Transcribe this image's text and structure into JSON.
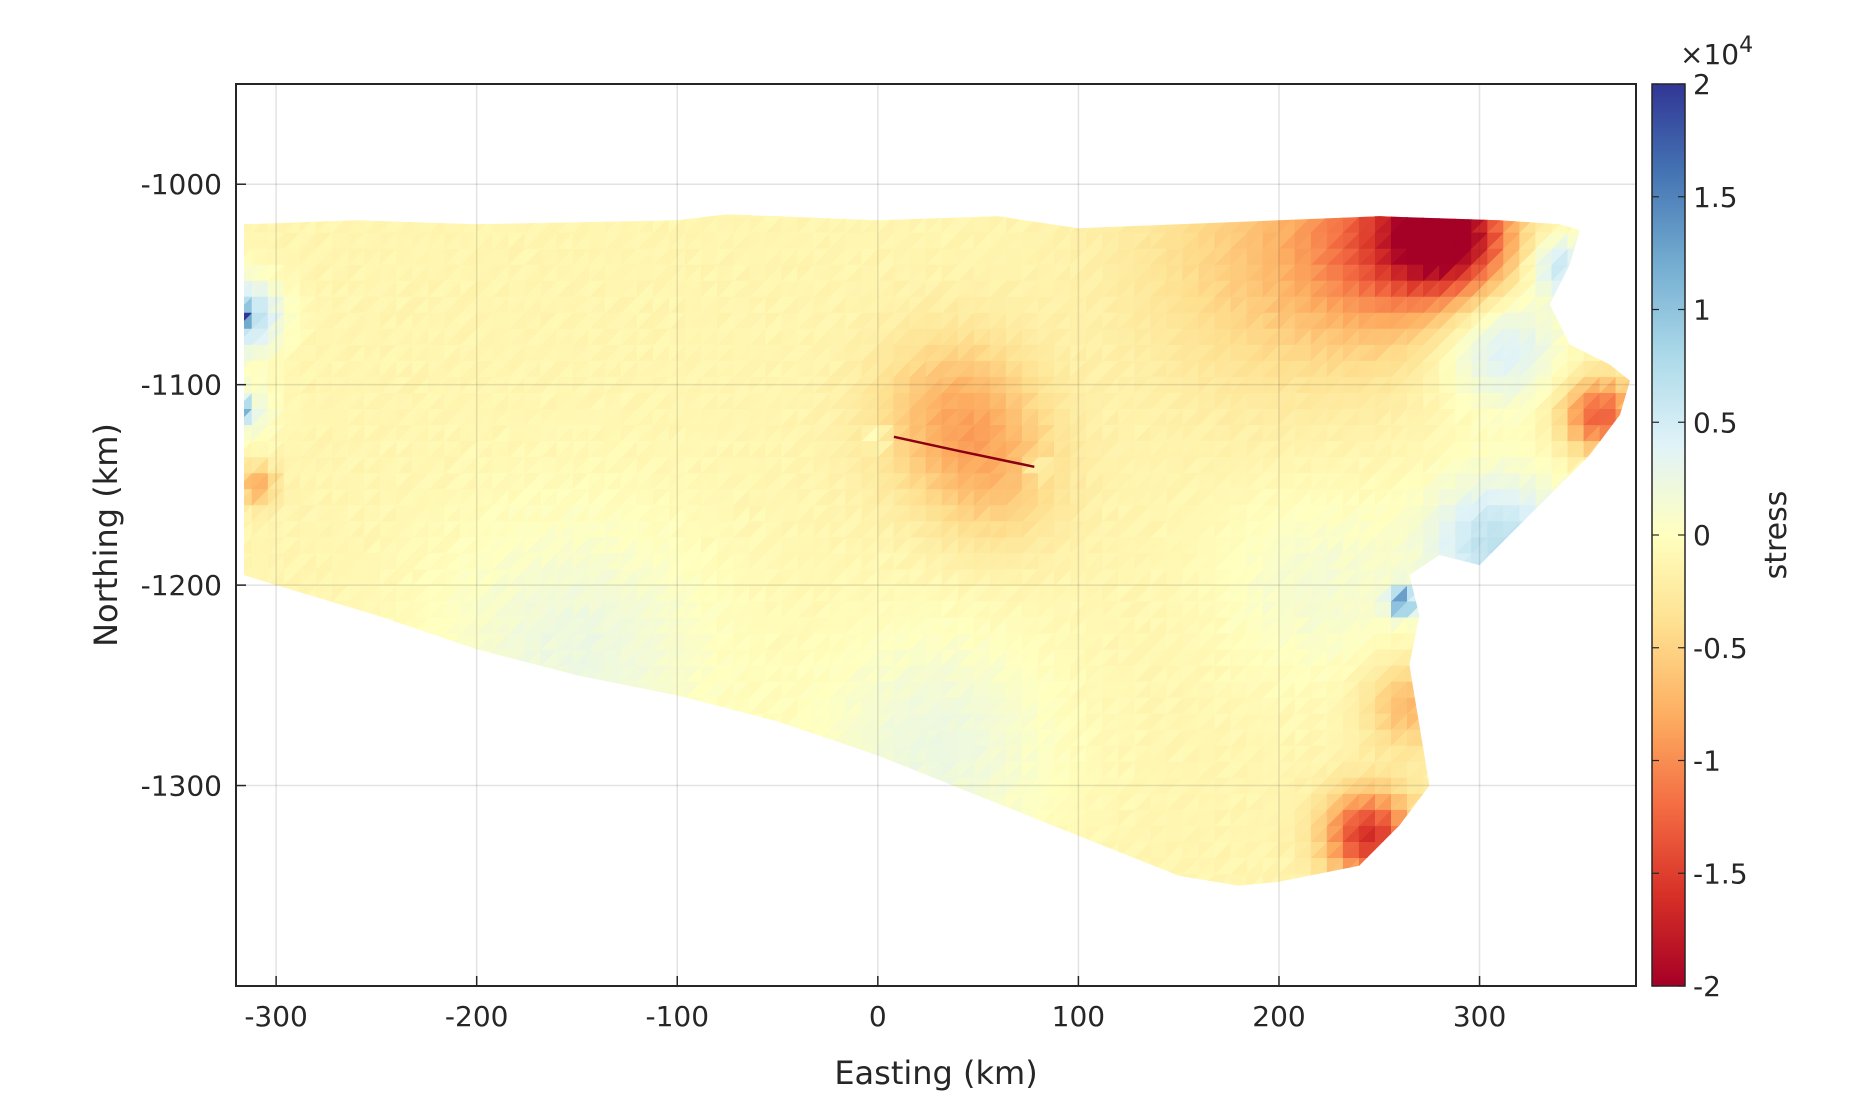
{
  "chart_data": {
    "type": "heatmap",
    "title": "",
    "xlabel": "Easting (km)",
    "ylabel": "Northing (km)",
    "xlim": [
      -320,
      378
    ],
    "ylim": [
      -1400,
      -950
    ],
    "x_ticks": [
      -300,
      -200,
      -100,
      0,
      100,
      200,
      300
    ],
    "x_tick_labels": [
      "-300",
      "-200",
      "-100",
      "0",
      "100",
      "200",
      "300"
    ],
    "y_ticks": [
      -1000,
      -1100,
      -1200,
      -1300
    ],
    "y_tick_labels": [
      "-1000",
      "-1100",
      "-1200",
      "-1300"
    ],
    "grid": true,
    "colorbar": {
      "label": "stress",
      "exponent_label": "×10",
      "exponent_power": "4",
      "range": [
        -2,
        2
      ],
      "ticks": [
        2,
        1.5,
        1,
        0.5,
        0,
        -0.5,
        -1,
        -1.5,
        -2
      ],
      "tick_labels": [
        "2",
        "1.5",
        "1",
        "0.5",
        "0",
        "-0.5",
        "-1",
        "-1.5",
        "-2"
      ],
      "colormap": "RdYlBu",
      "colormap_stops": [
        "#a50026",
        "#d73027",
        "#f46d43",
        "#fdae61",
        "#fee090",
        "#ffffbf",
        "#e0f3f8",
        "#abd9e9",
        "#74add1",
        "#4575b4",
        "#313695"
      ]
    },
    "domain_outline": [
      [
        -316,
        -1020
      ],
      [
        -260,
        -1018
      ],
      [
        -200,
        -1020
      ],
      [
        -150,
        -1019
      ],
      [
        -100,
        -1018
      ],
      [
        -75,
        -1015
      ],
      [
        0,
        -1018
      ],
      [
        60,
        -1016
      ],
      [
        100,
        -1022
      ],
      [
        150,
        -1020
      ],
      [
        200,
        -1018
      ],
      [
        250,
        -1016
      ],
      [
        280,
        -1017
      ],
      [
        310,
        -1018
      ],
      [
        340,
        -1020
      ],
      [
        350,
        -1023
      ],
      [
        345,
        -1040
      ],
      [
        335,
        -1060
      ],
      [
        345,
        -1080
      ],
      [
        365,
        -1090
      ],
      [
        375,
        -1098
      ],
      [
        370,
        -1115
      ],
      [
        355,
        -1135
      ],
      [
        335,
        -1155
      ],
      [
        315,
        -1175
      ],
      [
        300,
        -1190
      ],
      [
        280,
        -1185
      ],
      [
        265,
        -1195
      ],
      [
        270,
        -1215
      ],
      [
        265,
        -1240
      ],
      [
        270,
        -1270
      ],
      [
        275,
        -1300
      ],
      [
        260,
        -1320
      ],
      [
        240,
        -1340
      ],
      [
        200,
        -1348
      ],
      [
        180,
        -1350
      ],
      [
        150,
        -1345
      ],
      [
        100,
        -1325
      ],
      [
        50,
        -1305
      ],
      [
        0,
        -1285
      ],
      [
        -50,
        -1268
      ],
      [
        -100,
        -1255
      ],
      [
        -150,
        -1245
      ],
      [
        -200,
        -1232
      ],
      [
        -250,
        -1215
      ],
      [
        -300,
        -1200
      ],
      [
        -316,
        -1195
      ]
    ],
    "fault_trace": [
      [
        8,
        -1126
      ],
      [
        40,
        -1133
      ],
      [
        78,
        -1141
      ]
    ],
    "anomalies": [
      {
        "x": 285,
        "y": -1025,
        "value": -17000,
        "spread": 30
      },
      {
        "x": 255,
        "y": -1030,
        "value": -9000,
        "spread": 45
      },
      {
        "x": 200,
        "y": -1035,
        "value": -4500,
        "spread": 70
      },
      {
        "x": 360,
        "y": -1115,
        "value": -12000,
        "spread": 18
      },
      {
        "x": 245,
        "y": -1325,
        "value": -15000,
        "spread": 22
      },
      {
        "x": 265,
        "y": -1260,
        "value": -6000,
        "spread": 22
      },
      {
        "x": -310,
        "y": -1150,
        "value": -7000,
        "spread": 10
      },
      {
        "x": 40,
        "y": -1115,
        "value": -6500,
        "spread": 40
      },
      {
        "x": 60,
        "y": -1150,
        "value": -3500,
        "spread": 35
      },
      {
        "x": 310,
        "y": -1180,
        "value": 8000,
        "spread": 35
      },
      {
        "x": 310,
        "y": -1080,
        "value": 6000,
        "spread": 30
      },
      {
        "x": 340,
        "y": -1040,
        "value": 7000,
        "spread": 15
      },
      {
        "x": 262,
        "y": -1208,
        "value": 14000,
        "spread": 7
      },
      {
        "x": -318,
        "y": -1066,
        "value": 20000,
        "spread": 4
      },
      {
        "x": -316,
        "y": -1066,
        "value": 9000,
        "spread": 18
      },
      {
        "x": -316,
        "y": -1113,
        "value": 12000,
        "spread": 4
      },
      {
        "x": -316,
        "y": -1113,
        "value": 4000,
        "spread": 15
      },
      {
        "x": -150,
        "y": -1235,
        "value": 3500,
        "spread": 70
      },
      {
        "x": 30,
        "y": -1280,
        "value": 3500,
        "spread": 60
      },
      {
        "x": 220,
        "y": -1200,
        "value": 2500,
        "spread": 50
      },
      {
        "x": 0,
        "y": -1127,
        "value": 5000,
        "spread": 5
      },
      {
        "x": 80,
        "y": -1142,
        "value": 5000,
        "spread": 5
      }
    ]
  }
}
